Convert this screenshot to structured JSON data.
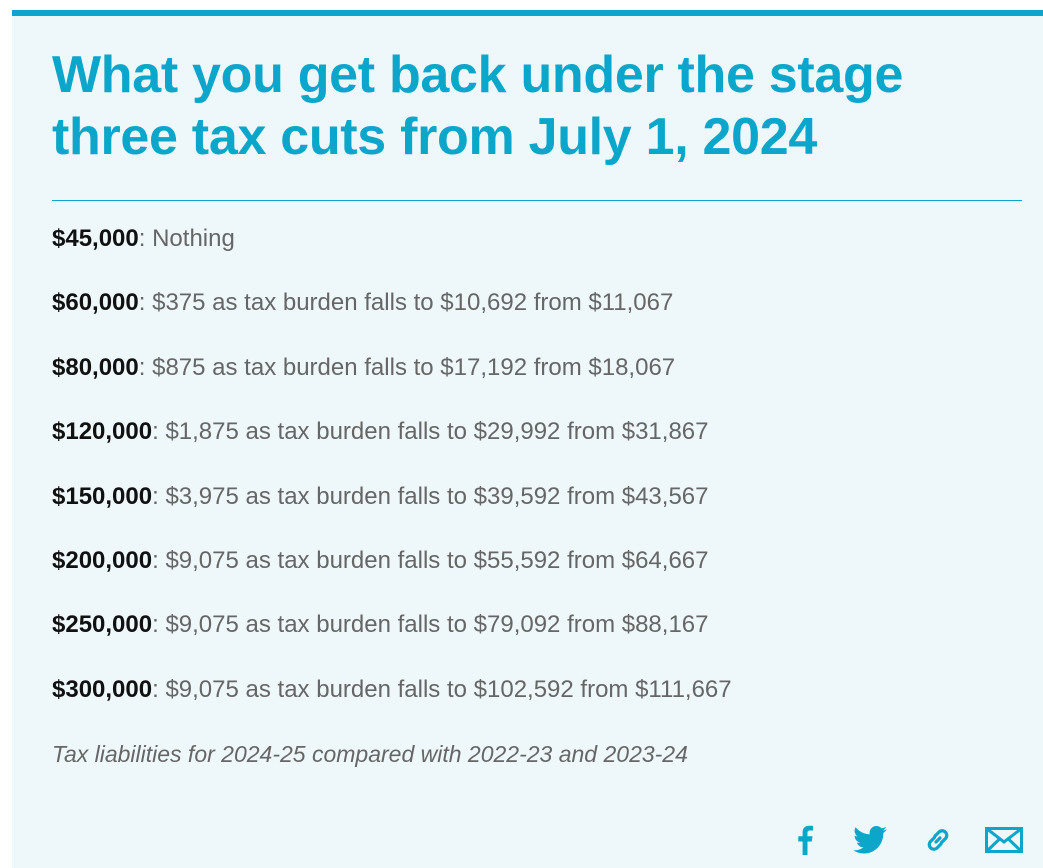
{
  "title": "What you get back under the stage three tax cuts from July 1, 2024",
  "items": [
    {
      "amount": "$45,000",
      "text": ": Nothing"
    },
    {
      "amount": "$60,000",
      "text": ": $375 as tax burden falls to $10,692 from $11,067"
    },
    {
      "amount": "$80,000",
      "text": ": $875 as tax burden falls to $17,192 from $18,067"
    },
    {
      "amount": "$120,000",
      "text": ": $1,875 as tax burden falls to $29,992 from $31,867"
    },
    {
      "amount": "$150,000",
      "text": ": $3,975 as tax burden falls to $39,592 from $43,567"
    },
    {
      "amount": "$200,000",
      "text": ": $9,075 as tax burden falls to $55,592 from $64,667"
    },
    {
      "amount": "$250,000",
      "text": ": $9,075 as tax burden falls to $79,092 from $88,167"
    },
    {
      "amount": "$300,000",
      "text": ": $9,075 as tax burden falls to $102,592 from $111,667"
    }
  ],
  "note": "Tax liabilities for 2024-25 compared with 2022-23 and 2023-24",
  "share": {
    "icons": [
      "facebook-icon",
      "twitter-icon",
      "link-icon",
      "email-icon"
    ]
  },
  "colors": {
    "accent": "#0ba6c9",
    "background": "#eef7fa",
    "amount_text": "#111111",
    "body_text": "#666666"
  }
}
